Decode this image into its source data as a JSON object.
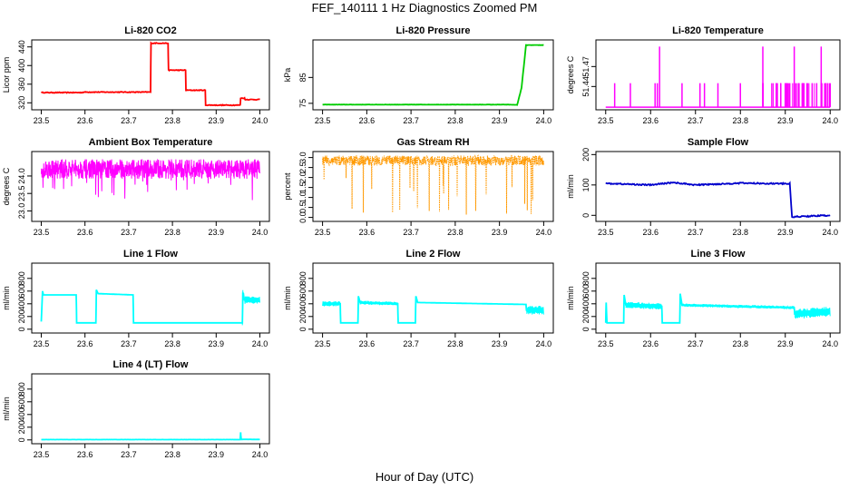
{
  "figure": {
    "title": "FEF_140111  1 Hz Diagnostics Zoomed PM",
    "xlabel": "Hour of Day (UTC)"
  },
  "chart_data": [
    {
      "type": "line",
      "title": "Li-820 CO2",
      "ylabel": "Licor ppm",
      "color": "#ff0000",
      "xlim": [
        23.5,
        24.0
      ],
      "xticks": [
        23.5,
        23.6,
        23.7,
        23.8,
        23.9,
        24.0
      ],
      "ylim": [
        305,
        455
      ],
      "yticks": [
        320,
        360,
        400,
        440
      ],
      "series": [
        {
          "x": [
            23.5,
            23.59,
            23.599,
            23.75,
            23.751,
            23.79,
            23.791,
            23.83,
            23.831,
            23.875,
            23.876,
            23.955,
            23.956,
            23.965,
            23.966,
            24.0
          ],
          "y": [
            342,
            342,
            343,
            343,
            448,
            448,
            390,
            390,
            347,
            347,
            315,
            315,
            330,
            330,
            327,
            327
          ]
        }
      ],
      "noise": 0.8
    },
    {
      "type": "line",
      "title": "Li-820 Pressure",
      "ylabel": "kPa",
      "color": "#00cc00",
      "xlim": [
        23.5,
        24.0
      ],
      "xticks": [
        23.5,
        23.6,
        23.7,
        23.8,
        23.9,
        24.0
      ],
      "ylim": [
        72.5,
        99.5
      ],
      "yticks": [
        75,
        85
      ],
      "series": [
        {
          "x": [
            23.5,
            23.915,
            23.94,
            23.95,
            23.96,
            24.0
          ],
          "y": [
            74.5,
            74.5,
            74.4,
            81,
            97.5,
            97.5
          ]
        }
      ],
      "noise": 0.05
    },
    {
      "type": "spikes",
      "title": "Li-820 Temperature",
      "ylabel": "degrees C",
      "color": "#ff00ff",
      "xlim": [
        23.5,
        24.0
      ],
      "xticks": [
        23.5,
        23.6,
        23.7,
        23.8,
        23.9,
        24.0
      ],
      "ylim": [
        51.405,
        51.51
      ],
      "yticks": [
        51.44,
        51.47
      ],
      "ytick_labels": [
        "51.44",
        "51.47"
      ],
      "baseline": 51.409,
      "top": 51.5,
      "high": 51.445,
      "spike_x": [
        23.52,
        23.555,
        23.61,
        23.615,
        23.67,
        23.71,
        23.72,
        23.75,
        23.8,
        23.85,
        23.87,
        23.88,
        23.89,
        23.9,
        23.905,
        23.91,
        23.92,
        23.93,
        23.94,
        23.95,
        23.96,
        23.97,
        23.98,
        23.99,
        24.0
      ],
      "tall_x": [
        23.62,
        23.85,
        23.92,
        23.98
      ]
    },
    {
      "type": "noise",
      "title": "Ambient Box Temperature",
      "ylabel": "degrees C",
      "color": "#ff00ff",
      "xlim": [
        23.5,
        24.0
      ],
      "xticks": [
        23.5,
        23.6,
        23.7,
        23.8,
        23.9,
        24.0
      ],
      "ylim": [
        22.7,
        24.7
      ],
      "yticks": [
        23.0,
        23.5,
        24.0
      ],
      "ytick_labels": [
        "23.0",
        "23.5",
        "24.0"
      ],
      "center": 24.2,
      "spread": 0.28,
      "dips": 0.9
    },
    {
      "type": "noise",
      "title": "Gas Stream RH",
      "ylabel": "percent",
      "color": "#ff9900",
      "xlim": [
        23.5,
        24.0
      ],
      "xticks": [
        23.5,
        23.6,
        23.7,
        23.8,
        23.9,
        24.0
      ],
      "ylim": [
        -0.2,
        3.3
      ],
      "yticks": [
        0.0,
        0.5,
        1.0,
        1.5,
        2.0,
        2.5,
        3.0
      ],
      "ytick_labels": [
        "0.0",
        "0.5",
        "1.0",
        "1.5",
        "2.0",
        "2.5",
        "3.0"
      ],
      "center": 2.85,
      "spread": 0.25,
      "dips": 2.8,
      "dotted": true
    },
    {
      "type": "line",
      "title": "Sample Flow",
      "ylabel": "ml/min",
      "color": "#0000cc",
      "xlim": [
        23.5,
        24.0
      ],
      "xticks": [
        23.5,
        23.6,
        23.7,
        23.8,
        23.9,
        24.0
      ],
      "ylim": [
        -20,
        210
      ],
      "yticks": [
        0,
        100,
        200
      ],
      "series": [
        {
          "x": [
            23.5,
            23.6,
            23.65,
            23.7,
            23.8,
            23.91,
            23.915,
            24.0
          ],
          "y": [
            105,
            100,
            108,
            100,
            106,
            104,
            -5,
            0
          ]
        }
      ],
      "noise": 2
    },
    {
      "type": "band",
      "title": "Line 1 Flow",
      "ylabel": "ml/min",
      "color": "#00ffff",
      "xlim": [
        23.5,
        24.0
      ],
      "xticks": [
        23.5,
        23.6,
        23.7,
        23.8,
        23.9,
        24.0
      ],
      "ylim": [
        -60,
        1040
      ],
      "yticks": [
        0,
        200,
        400,
        600,
        800
      ],
      "series": [
        {
          "x": [
            23.5,
            23.503,
            23.505,
            23.58,
            23.581,
            23.625,
            23.626,
            23.63,
            23.71,
            23.711,
            23.96,
            23.961,
            23.965,
            24.0
          ],
          "y": [
            120,
            600,
            540,
            540,
            100,
            100,
            620,
            560,
            540,
            100,
            100,
            580,
            460,
            460
          ]
        }
      ],
      "band": [
        [
          23.96,
          24.0,
          60
        ]
      ]
    },
    {
      "type": "band",
      "title": "Line 2 Flow",
      "ylabel": "ml/min",
      "color": "#00ffff",
      "xlim": [
        23.5,
        24.0
      ],
      "xticks": [
        23.5,
        23.6,
        23.7,
        23.8,
        23.9,
        24.0
      ],
      "ylim": [
        -60,
        1040
      ],
      "yticks": [
        0,
        200,
        400,
        600,
        800
      ],
      "series": [
        {
          "x": [
            23.5,
            23.54,
            23.541,
            23.58,
            23.581,
            23.585,
            23.67,
            23.671,
            23.71,
            23.711,
            23.715,
            23.96,
            23.961,
            24.0
          ],
          "y": [
            400,
            400,
            100,
            100,
            520,
            420,
            400,
            100,
            100,
            520,
            420,
            390,
            300,
            300
          ]
        }
      ],
      "band": [
        [
          23.5,
          23.54,
          40
        ],
        [
          23.585,
          23.67,
          30
        ],
        [
          23.96,
          24.0,
          70
        ]
      ]
    },
    {
      "type": "band",
      "title": "Line 3 Flow",
      "ylabel": "ml/min",
      "color": "#00ffff",
      "xlim": [
        23.5,
        24.0
      ],
      "xticks": [
        23.5,
        23.6,
        23.7,
        23.8,
        23.9,
        24.0
      ],
      "ylim": [
        -60,
        1040
      ],
      "yticks": [
        0,
        200,
        400,
        600,
        800
      ],
      "series": [
        {
          "x": [
            23.5,
            23.501,
            23.503,
            23.54,
            23.541,
            23.545,
            23.625,
            23.626,
            23.665,
            23.666,
            23.67,
            23.92,
            23.921,
            24.0
          ],
          "y": [
            100,
            420,
            100,
            100,
            540,
            380,
            360,
            100,
            100,
            560,
            380,
            340,
            240,
            280
          ]
        }
      ],
      "band": [
        [
          23.545,
          23.625,
          50
        ],
        [
          23.67,
          23.92,
          25
        ],
        [
          23.92,
          24.0,
          80
        ]
      ]
    },
    {
      "type": "line",
      "title": "Line 4 (LT) Flow",
      "ylabel": "ml/min",
      "color": "#00ffff",
      "xlim": [
        23.5,
        24.0
      ],
      "xticks": [
        23.5,
        23.6,
        23.7,
        23.8,
        23.9,
        24.0
      ],
      "ylim": [
        -60,
        1040
      ],
      "yticks": [
        0,
        200,
        400,
        600,
        800
      ],
      "series": [
        {
          "x": [
            23.5,
            23.955,
            23.956,
            23.957,
            23.958,
            24.0
          ],
          "y": [
            5,
            5,
            120,
            30,
            8,
            8
          ]
        }
      ],
      "noise": 1
    }
  ]
}
